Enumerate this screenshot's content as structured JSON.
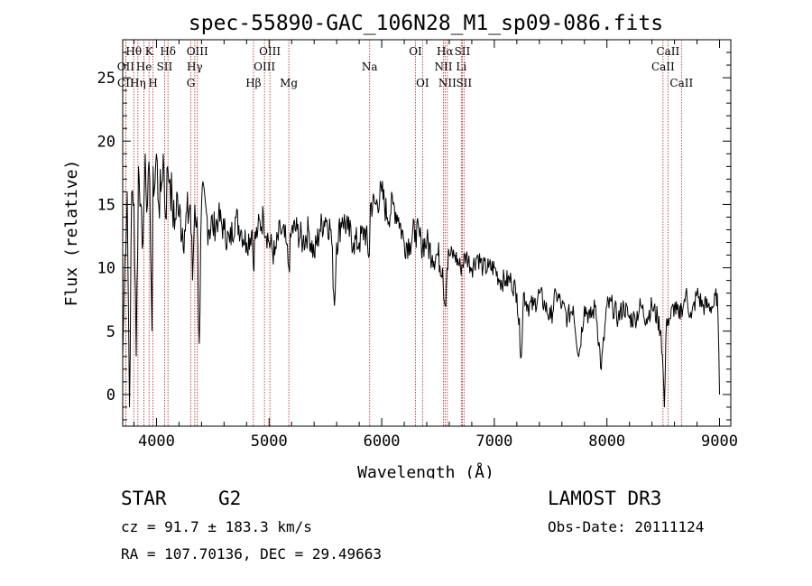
{
  "chart_data": {
    "type": "line",
    "title": "spec-55890-GAC_106N28_M1_sp09-086.fits",
    "xlabel": "Wavelength (Å)",
    "ylabel": "Flux (relative)",
    "xlim": [
      3700,
      9100
    ],
    "ylim": [
      -2.5,
      28
    ],
    "xticks": [
      4000,
      5000,
      6000,
      7000,
      8000,
      9000
    ],
    "yticks": [
      0,
      5,
      10,
      15,
      20,
      25
    ],
    "series": [
      {
        "name": "flux",
        "x": [
          3700,
          3720,
          3740,
          3760,
          3780,
          3800,
          3820,
          3840,
          3860,
          3880,
          3900,
          3920,
          3940,
          3960,
          3970,
          3980,
          4000,
          4020,
          4040,
          4060,
          4080,
          4100,
          4120,
          4140,
          4160,
          4180,
          4200,
          4250,
          4300,
          4320,
          4340,
          4360,
          4380,
          4400,
          4450,
          4500,
          4550,
          4600,
          4650,
          4700,
          4750,
          4800,
          4850,
          4861,
          4870,
          4900,
          4950,
          5000,
          5050,
          5100,
          5150,
          5175,
          5200,
          5250,
          5300,
          5350,
          5400,
          5450,
          5500,
          5550,
          5580,
          5600,
          5650,
          5700,
          5750,
          5800,
          5850,
          5890,
          5900,
          5950,
          6000,
          6050,
          6100,
          6150,
          6200,
          6250,
          6300,
          6350,
          6400,
          6450,
          6500,
          6540,
          6563,
          6580,
          6600,
          6650,
          6700,
          6750,
          6800,
          6850,
          6900,
          6950,
          7000,
          7050,
          7100,
          7150,
          7200,
          7240,
          7260,
          7300,
          7350,
          7400,
          7450,
          7500,
          7550,
          7600,
          7650,
          7700,
          7750,
          7800,
          7850,
          7900,
          7950,
          8000,
          8050,
          8100,
          8150,
          8200,
          8250,
          8300,
          8350,
          8400,
          8450,
          8480,
          8498,
          8510,
          8530,
          8542,
          8560,
          8600,
          8640,
          8662,
          8680,
          8700,
          8750,
          8800,
          8850,
          8900,
          8950,
          8980,
          9000
        ],
        "values": [
          3,
          11,
          16,
          -1,
          16,
          15,
          3,
          18,
          15,
          12,
          19,
          15,
          17,
          5,
          18,
          16,
          19,
          15,
          16,
          19,
          14,
          18,
          17,
          15,
          13,
          16,
          14,
          13,
          15,
          9,
          15,
          14,
          4,
          15,
          14,
          13,
          14,
          13,
          12,
          14,
          13,
          12,
          13,
          10,
          12,
          13,
          14,
          12,
          11,
          13,
          12,
          10,
          13,
          13,
          12,
          13,
          11,
          13,
          14,
          13,
          7,
          12,
          14,
          13,
          12,
          12,
          13,
          11,
          15,
          15,
          16,
          14,
          15,
          14,
          12,
          12,
          13,
          12,
          12,
          11,
          11,
          10,
          7,
          10,
          11,
          11,
          10,
          11,
          10,
          11,
          10,
          10,
          10,
          9,
          9,
          9,
          8,
          3,
          8,
          7,
          7,
          8,
          7,
          6,
          8,
          7,
          6,
          7,
          3,
          7,
          6,
          7,
          2,
          7,
          7,
          6,
          7,
          6,
          6,
          7,
          6,
          7,
          6,
          5,
          2,
          -1,
          6,
          6,
          6,
          7,
          6,
          7,
          7,
          8,
          6,
          8,
          7,
          7,
          7,
          8,
          0
        ]
      }
    ],
    "lines": [
      {
        "label": "Hθ",
        "x": 3798,
        "row": 1
      },
      {
        "label": "OII",
        "x": 3727,
        "row": 2
      },
      {
        "label": "CII",
        "x": 3727,
        "row": 3
      },
      {
        "label": "Hη",
        "x": 3835,
        "row": 3
      },
      {
        "label": "He",
        "x": 3889,
        "row": 2
      },
      {
        "label": "K",
        "x": 3934,
        "row": 1
      },
      {
        "label": "H",
        "x": 3969,
        "row": 3
      },
      {
        "label": "SII",
        "x": 4072,
        "row": 2
      },
      {
        "label": "Hδ",
        "x": 4102,
        "row": 1
      },
      {
        "label": "OIII",
        "x": 4363,
        "row": 1
      },
      {
        "label": "Hγ",
        "x": 4340,
        "row": 2
      },
      {
        "label": "G",
        "x": 4305,
        "row": 3
      },
      {
        "label": "Hβ",
        "x": 4861,
        "row": 3
      },
      {
        "label": "OIII",
        "x": 5007,
        "row": 1
      },
      {
        "label": "OIII",
        "x": 4959,
        "row": 2
      },
      {
        "label": "Mg",
        "x": 5175,
        "row": 3
      },
      {
        "label": "Na",
        "x": 5893,
        "row": 2
      },
      {
        "label": "OI",
        "x": 6300,
        "row": 1
      },
      {
        "label": "OI",
        "x": 6363,
        "row": 3
      },
      {
        "label": "Hα",
        "x": 6563,
        "row": 1
      },
      {
        "label": "NII",
        "x": 6548,
        "row": 2
      },
      {
        "label": "NII",
        "x": 6583,
        "row": 3
      },
      {
        "label": "SII",
        "x": 6716,
        "row": 1
      },
      {
        "label": "Li",
        "x": 6707,
        "row": 2
      },
      {
        "label": "SII",
        "x": 6731,
        "row": 3
      },
      {
        "label": "CaII",
        "x": 8542,
        "row": 1
      },
      {
        "label": "CaII",
        "x": 8498,
        "row": 2
      },
      {
        "label": "CaII",
        "x": 8662,
        "row": 3
      }
    ]
  },
  "info": {
    "object_type": "STAR",
    "subclass": "G2",
    "survey": "LAMOST DR3",
    "cz": "cz = 91.7 ± 183.3 km/s",
    "obs_date": "Obs-Date: 20111124",
    "coords": "RA = 107.70136, DEC =  29.49663"
  },
  "colors": {
    "axis": "#000000",
    "spectrum": "#000000",
    "line_marker": "#b22222"
  }
}
